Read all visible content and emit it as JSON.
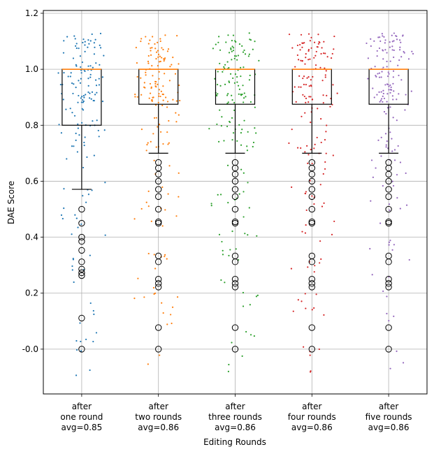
{
  "chart_data": {
    "type": "box",
    "xlabel": "Editing Rounds",
    "ylabel": "DAE Score",
    "ylim": [
      -0.16,
      1.21
    ],
    "yticks": [
      "-0.0",
      "0.2",
      "0.4",
      "0.6",
      "0.8",
      "1.0",
      "1.2"
    ],
    "ytick_values": [
      0.0,
      0.2,
      0.4,
      0.6,
      0.8,
      1.0,
      1.2
    ],
    "grid": true,
    "categories": [
      {
        "line1": "after",
        "line2": "one round",
        "line3": "avg=0.85"
      },
      {
        "line1": "after",
        "line2": "two rounds",
        "line3": "avg=0.86"
      },
      {
        "line1": "after",
        "line2": "three rounds",
        "line3": "avg=0.86"
      },
      {
        "line1": "after",
        "line2": "four rounds",
        "line3": "avg=0.86"
      },
      {
        "line1": "after",
        "line2": "five rounds",
        "line3": "avg=0.86"
      }
    ],
    "series": [
      {
        "name": "after one round",
        "color": "#1f77b4",
        "avg": 0.85,
        "q1": 0.8,
        "median": 1.0,
        "q3": 1.0,
        "whisker_low": 0.571,
        "whisker_high": 1.0,
        "outliers": [
          0.5,
          0.45,
          0.4,
          0.385,
          0.353,
          0.312,
          0.286,
          0.273,
          0.263,
          0.111,
          0.0
        ]
      },
      {
        "name": "after two rounds",
        "color": "#ff7f0e",
        "avg": 0.86,
        "q1": 0.875,
        "median": 1.0,
        "q3": 1.0,
        "whisker_low": 0.7,
        "whisker_high": 1.0,
        "outliers": [
          0.667,
          0.647,
          0.625,
          0.6,
          0.571,
          0.545,
          0.5,
          0.455,
          0.45,
          0.333,
          0.312,
          0.25,
          0.235,
          0.222,
          0.077,
          0.0
        ]
      },
      {
        "name": "after three rounds",
        "color": "#2ca02c",
        "avg": 0.86,
        "q1": 0.875,
        "median": 1.0,
        "q3": 1.0,
        "whisker_low": 0.7,
        "whisker_high": 1.0,
        "outliers": [
          0.667,
          0.647,
          0.625,
          0.6,
          0.571,
          0.545,
          0.5,
          0.455,
          0.45,
          0.333,
          0.312,
          0.25,
          0.235,
          0.222,
          0.077,
          0.0
        ]
      },
      {
        "name": "after four rounds",
        "color": "#d62728",
        "avg": 0.86,
        "q1": 0.875,
        "median": 1.0,
        "q3": 1.0,
        "whisker_low": 0.7,
        "whisker_high": 1.0,
        "outliers": [
          0.667,
          0.647,
          0.625,
          0.6,
          0.571,
          0.545,
          0.5,
          0.455,
          0.45,
          0.333,
          0.312,
          0.25,
          0.235,
          0.222,
          0.077,
          0.0
        ]
      },
      {
        "name": "after five rounds",
        "color": "#9467bd",
        "avg": 0.86,
        "q1": 0.875,
        "median": 1.0,
        "q3": 1.0,
        "whisker_low": 0.7,
        "whisker_high": 1.0,
        "outliers": [
          0.667,
          0.647,
          0.625,
          0.6,
          0.571,
          0.545,
          0.5,
          0.455,
          0.45,
          0.333,
          0.312,
          0.25,
          0.235,
          0.222,
          0.077,
          0.0
        ]
      }
    ],
    "jitter_points_per_series": 160,
    "colors": {
      "grid": "#b0b0b0",
      "box": "#000000",
      "median": "#ff7f0e",
      "axis": "#000000"
    }
  }
}
